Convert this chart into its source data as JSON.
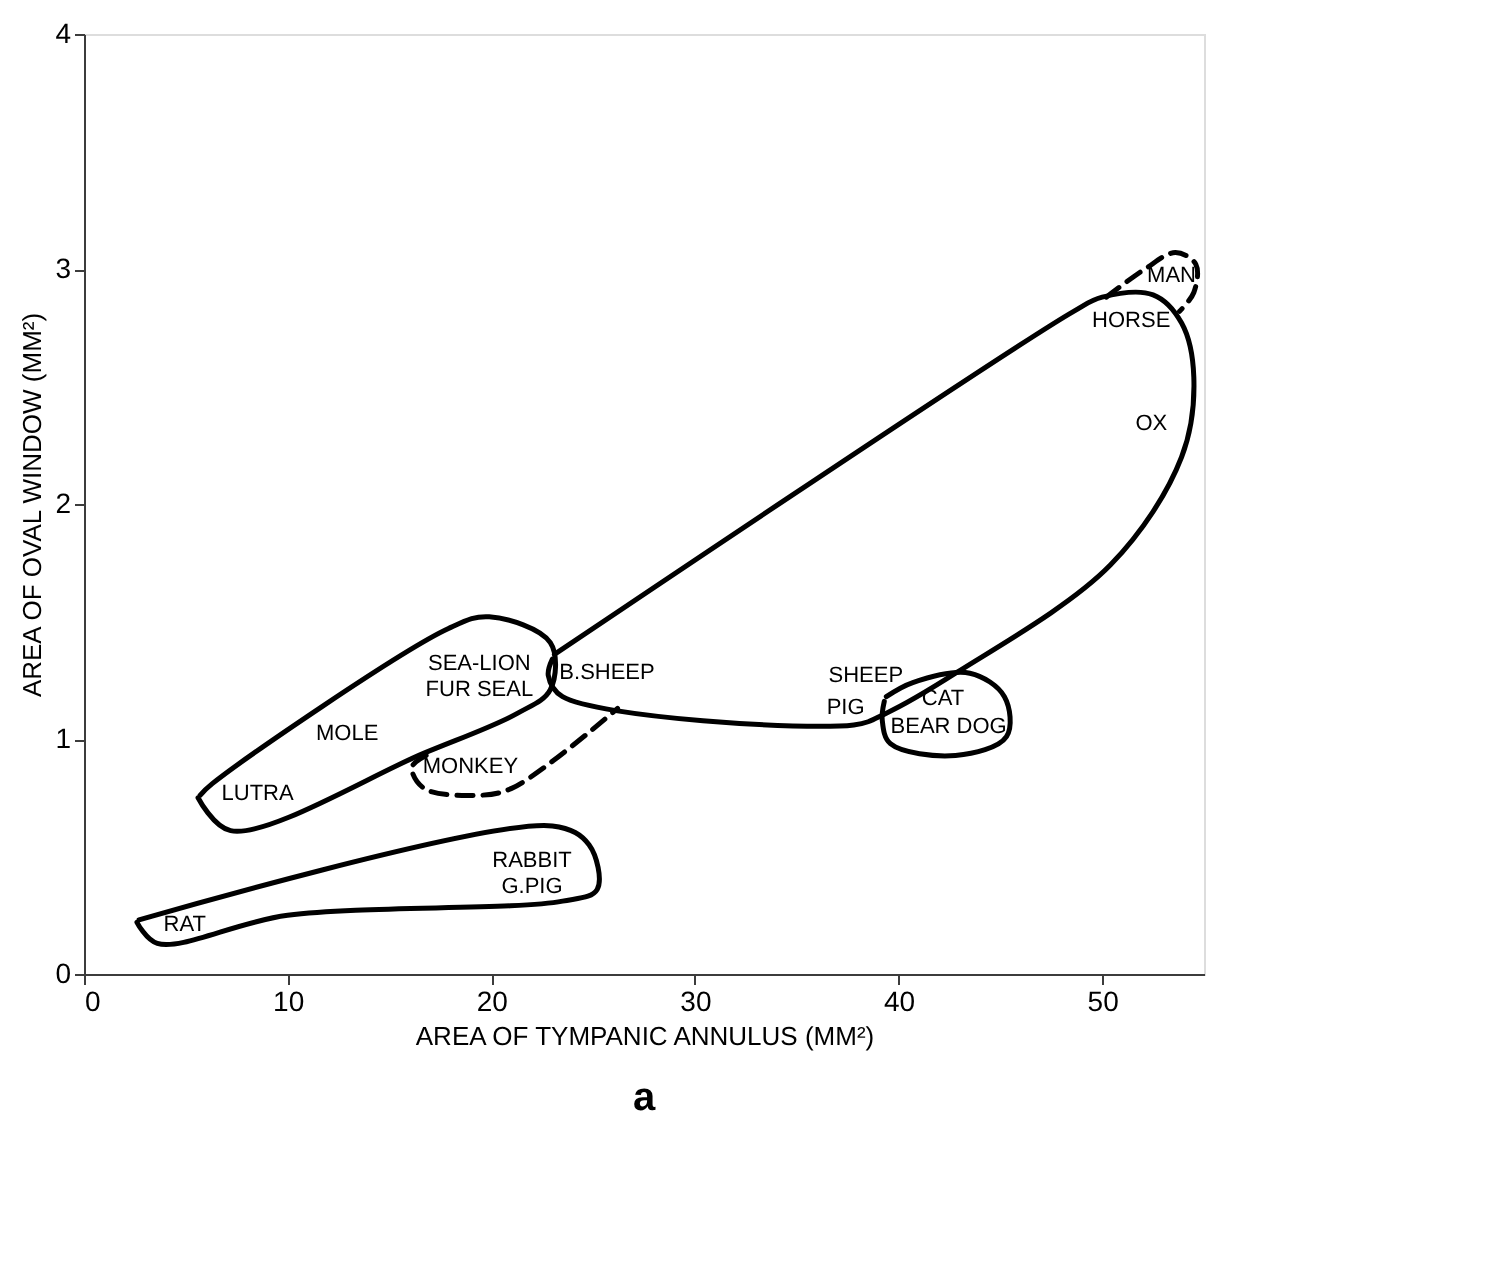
{
  "chart_data": {
    "type": "line",
    "xlabel": "AREA OF TYMPANIC ANNULUS (MM²)",
    "ylabel": "AREA OF OVAL WINDOW (MM²)",
    "xlim": [
      0,
      55
    ],
    "ylim": [
      0,
      4
    ],
    "xticks": [
      0,
      10,
      20,
      30,
      40,
      50
    ],
    "yticks": [
      0,
      1,
      2,
      3,
      4
    ],
    "marker": "none",
    "series": [
      {
        "color": "#000000",
        "line_style": "solid",
        "x": [
          2.6,
          3.6,
          10,
          23.5,
          25.2,
          24.8,
          23,
          2.7
        ],
        "values": [
          0.22,
          0.13,
          0.25,
          0.31,
          0.36,
          0.55,
          0.63,
          0.23
        ]
      },
      {
        "color": "#000000",
        "line_style": "solid",
        "x": [
          5.6,
          7.2,
          16.7,
          21.3,
          22.9,
          22.9,
          19.9,
          17.9,
          6.3,
          5.7
        ],
        "values": [
          0.75,
          0.61,
          0.94,
          1.11,
          1.21,
          1.41,
          1.52,
          1.47,
          0.81,
          0.76
        ]
      },
      {
        "color": "#000000",
        "line_style": "solid",
        "x": [
          23.1,
          48.6,
          50,
          52.5,
          53.9,
          54.5,
          53.9,
          50.4,
          42.8,
          39.4,
          37.8,
          23.5,
          22.8,
          23
        ],
        "values": [
          1.36,
          2.82,
          2.88,
          2.89,
          2.77,
          2.54,
          2.2,
          1.74,
          1.28,
          1.11,
          1.06,
          1.18,
          1.27,
          1.34
        ]
      },
      {
        "color": "#000000",
        "line_style": "solid",
        "x": [
          39.4,
          40.7,
          43.5,
          45.2,
          45.3,
          42.8,
          39.6,
          39.2,
          39.3
        ],
        "values": [
          1.18,
          1.24,
          1.28,
          1.18,
          1.01,
          0.93,
          0.98,
          1.08,
          1.16
        ]
      },
      {
        "color": "#000000",
        "line_style": "dashed",
        "x": [
          16.8,
          16.1,
          16.7,
          19.2,
          21,
          26.2
        ],
        "values": [
          0.93,
          0.88,
          0.79,
          0.76,
          0.79,
          1.13
        ]
      },
      {
        "color": "#000000",
        "line_style": "dashed",
        "x": [
          50.2,
          52.1,
          53.6,
          54.6,
          54.5,
          53.8
        ],
        "values": [
          2.88,
          3.0,
          3.07,
          3.02,
          2.9,
          2.82
        ]
      }
    ],
    "annotations": [
      "RAT",
      "RABBIT",
      "G.PIG",
      "LUTRA",
      "MOLE",
      "SEA-LION",
      "FUR SEAL",
      "MONKEY",
      "B.SHEEP",
      "SHEEP",
      "PIG",
      "CAT",
      "BEAR DOG",
      "HORSE",
      "OX",
      "MAN",
      "a"
    ]
  }
}
